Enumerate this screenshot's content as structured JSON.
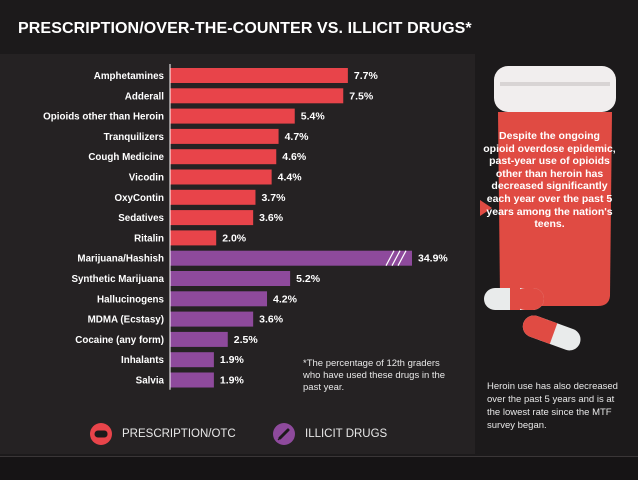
{
  "title": "PRESCRIPTION/OVER-THE-COUNTER VS. ILLICIT DRUGS*",
  "chart_data": {
    "type": "bar",
    "orientation": "horizontal",
    "unit": "%",
    "xlim": [
      0,
      10
    ],
    "series": [
      {
        "name": "PRESCRIPTION/OTC",
        "color": "#e8444a",
        "categories": [
          "Amphetamines",
          "Adderall",
          "Opioids other than Heroin",
          "Tranquilizers",
          "Cough Medicine",
          "Vicodin",
          "OxyContin",
          "Sedatives",
          "Ritalin"
        ],
        "values": [
          7.7,
          7.5,
          5.4,
          4.7,
          4.6,
          4.4,
          3.7,
          3.6,
          2.0
        ],
        "labels": [
          "7.7%",
          "7.5%",
          "5.4%",
          "4.7%",
          "4.6%",
          "4.4%",
          "3.7%",
          "3.6%",
          "2.0%"
        ]
      },
      {
        "name": "ILLICIT DRUGS",
        "color": "#8e4a9c",
        "categories": [
          "Marijuana/Hashish",
          "Synthetic Marijuana",
          "Hallucinogens",
          "MDMA (Ecstasy)",
          "Cocaine (any form)",
          "Inhalants",
          "Salvia"
        ],
        "values": [
          34.9,
          5.2,
          4.2,
          3.6,
          2.5,
          1.9,
          1.9
        ],
        "labels": [
          "34.9%",
          "5.2%",
          "4.2%",
          "3.6%",
          "2.5%",
          "1.9%",
          "1.9%"
        ]
      }
    ],
    "axis_break": {
      "category": "Marijuana/Hashish"
    }
  },
  "footnote": "*The percentage of 12th graders who have used these drugs in the past year.",
  "legend": [
    {
      "label": "PRESCRIPTION/OTC",
      "icon": "pill-icon",
      "color": "#e8444a"
    },
    {
      "label": "ILLICIT DRUGS",
      "icon": "syringe-icon",
      "color": "#8e4a9c"
    }
  ],
  "callout": "Despite the ongoing opioid overdose epidemic, past-year use of opioids other than heroin has decreased significantly each year over the past 5 years among the nation's teens.",
  "side_note": "Heroin use has also decreased over the past 5 years and is at the lowest rate since the MTF survey began.",
  "colors": {
    "background": "#1c1a1b",
    "panel": "#252223",
    "rx": "#e8444a",
    "illicit": "#8e4a9c",
    "bottle": "#e04b43"
  }
}
